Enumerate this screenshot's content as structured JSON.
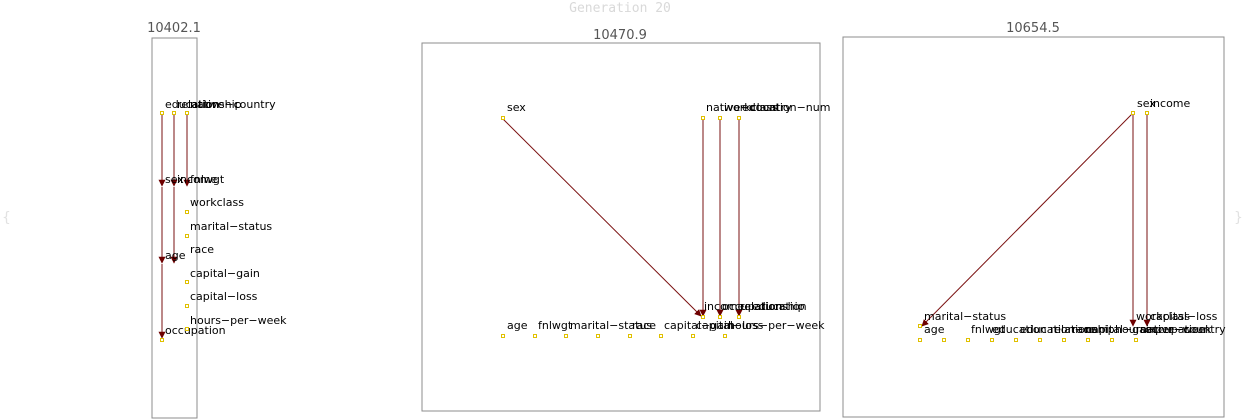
{
  "header": {
    "title": "Generation 20"
  },
  "panels": [
    {
      "score": "10402.1",
      "nodes": [
        {
          "id": "education",
          "label": "education"
        },
        {
          "id": "relationship",
          "label": "relationship"
        },
        {
          "id": "native-country",
          "label": "native−country"
        },
        {
          "id": "sex",
          "label": "sex"
        },
        {
          "id": "income",
          "label": "income"
        },
        {
          "id": "fnlwgt",
          "label": "fnlwgt"
        },
        {
          "id": "workclass",
          "label": "workclass"
        },
        {
          "id": "marital-status",
          "label": "marital−status"
        },
        {
          "id": "race",
          "label": "race"
        },
        {
          "id": "age",
          "label": "age"
        },
        {
          "id": "capital-gain",
          "label": "capital−gain"
        },
        {
          "id": "capital-loss",
          "label": "capital−loss"
        },
        {
          "id": "hours-per-week",
          "label": "hours−per−week"
        },
        {
          "id": "occupation",
          "label": "occupation"
        }
      ]
    },
    {
      "score": "10470.9",
      "nodes": [
        {
          "id": "sex",
          "label": "sex"
        },
        {
          "id": "native-country",
          "label": "native−country"
        },
        {
          "id": "workclass",
          "label": "workclass"
        },
        {
          "id": "education-num",
          "label": "education−num"
        },
        {
          "id": "income",
          "label": "income"
        },
        {
          "id": "occupation",
          "label": "occupation"
        },
        {
          "id": "relationship",
          "label": "relationship"
        },
        {
          "id": "education",
          "label": "education"
        },
        {
          "id": "age",
          "label": "age"
        },
        {
          "id": "fnlwgt",
          "label": "fnlwgt"
        },
        {
          "id": "marital-status",
          "label": "marital−status"
        },
        {
          "id": "race",
          "label": "race"
        },
        {
          "id": "capital-gain",
          "label": "capital−gain"
        },
        {
          "id": "capital-loss",
          "label": "capital−loss"
        },
        {
          "id": "hours-per-week",
          "label": "hours−per−week"
        }
      ]
    },
    {
      "score": "10654.5",
      "nodes": [
        {
          "id": "sex",
          "label": "sex"
        },
        {
          "id": "income",
          "label": "income"
        },
        {
          "id": "marital-status",
          "label": "marital−status"
        },
        {
          "id": "workclass",
          "label": "workclass"
        },
        {
          "id": "capital-loss",
          "label": "capital−loss"
        },
        {
          "id": "occupation",
          "label": "occupation"
        },
        {
          "id": "age",
          "label": "age"
        },
        {
          "id": "fnlwgt",
          "label": "fnlwgt"
        },
        {
          "id": "education",
          "label": "education"
        },
        {
          "id": "education-num",
          "label": "education−num"
        },
        {
          "id": "relationship",
          "label": "relationship"
        },
        {
          "id": "race",
          "label": "race"
        },
        {
          "id": "capital-gain",
          "label": "capital−gain"
        },
        {
          "id": "hours-per-week",
          "label": "hours−per−week"
        },
        {
          "id": "native-country",
          "label": "native−country"
        }
      ]
    }
  ],
  "colors": {
    "edge": "#7a1010",
    "node_marker": "#e0c000",
    "frame": "#8c8c8c"
  }
}
